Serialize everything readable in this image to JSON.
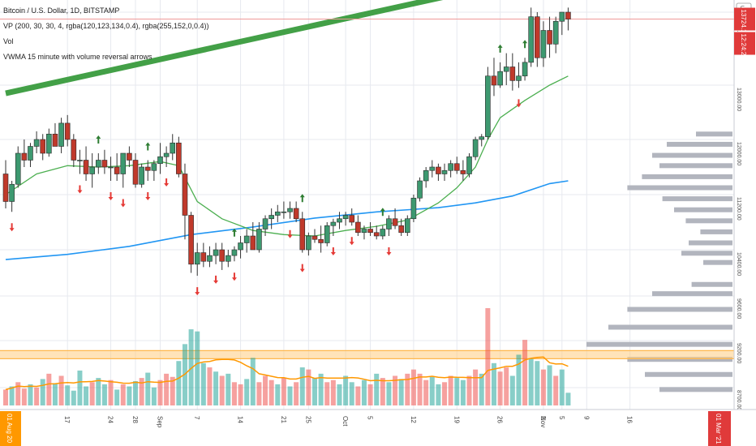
{
  "legend": {
    "symbol": "Bitcoin / U.S. Dollar, 1D, BITSTAMP",
    "vp": "VP (200, 30, 30, 4, rgba(120,123,134,0.4), rgba(255,152,0,0.4))",
    "vol": "Vol",
    "vwma": "VWMA 15 minute with volume reversal arrows"
  },
  "price_axis": {
    "ticks": [
      {
        "label": "13800.00",
        "price": 13800
      },
      {
        "label": "13000.00",
        "price": 13000
      },
      {
        "label": "12000.00",
        "price": 12000
      },
      {
        "label": "11200.00",
        "price": 11200
      },
      {
        "label": "10400.00",
        "price": 10400
      },
      {
        "label": "9600.00",
        "price": 9600
      },
      {
        "label": "9200.00",
        "price": 9200
      },
      {
        "label": "8700.00",
        "price": 8700
      }
    ],
    "last_price": "13724.17",
    "countdown": "12:24:26",
    "top_label": "USD"
  },
  "time_axis": {
    "labels": [
      {
        "text": "17",
        "i": 10
      },
      {
        "text": "24",
        "i": 17
      },
      {
        "text": "28",
        "i": 21
      },
      {
        "text": "Sep",
        "i": 25
      },
      {
        "text": "7",
        "i": 31
      },
      {
        "text": "14",
        "i": 38
      },
      {
        "text": "21",
        "i": 45
      },
      {
        "text": "25",
        "i": 49
      },
      {
        "text": "Oct",
        "i": 55
      },
      {
        "text": "5",
        "i": 59
      },
      {
        "text": "12",
        "i": 66
      },
      {
        "text": "19",
        "i": 73
      },
      {
        "text": "26",
        "i": 80
      },
      {
        "text": "2",
        "i": 87
      },
      {
        "text": "5",
        "i": 90
      },
      {
        "text": "9",
        "i": 94
      },
      {
        "text": "16",
        "i": 101
      }
    ],
    "start_badge": "01 Aug 20",
    "nov_label": "Nov",
    "end_badge": "01 Mar '21"
  },
  "colors": {
    "up": "#26a69a",
    "down": "#ef5350",
    "up_body": "#3d9970",
    "down_body": "#c0392b",
    "vwma_fast": "#4caf50",
    "vwma_slow": "#2196f3",
    "trendline": "#43a047",
    "vol_ma": "#ff9800",
    "vp_bar": "#b2b5be",
    "grid": "#e7e9ef",
    "badge": "#e03a3a",
    "start_badge": "#ff9800"
  },
  "chart_data": {
    "type": "candlestick",
    "timeframe": "1D",
    "ylim": [
      8600,
      14000
    ],
    "candles": [
      [
        11500,
        11700,
        11000,
        11100
      ],
      [
        11100,
        11400,
        10950,
        11350
      ],
      [
        11350,
        11900,
        11300,
        11800
      ],
      [
        11800,
        12000,
        11600,
        11700
      ],
      [
        11700,
        11950,
        11600,
        11900
      ],
      [
        11900,
        12150,
        11800,
        12000
      ],
      [
        12000,
        12100,
        11700,
        11800
      ],
      [
        11800,
        12200,
        11750,
        12100
      ],
      [
        12100,
        12300,
        11900,
        11900
      ],
      [
        11900,
        12400,
        11800,
        12300
      ],
      [
        12300,
        12450,
        11900,
        12000
      ],
      [
        12000,
        12100,
        11600,
        11700
      ],
      [
        11700,
        11850,
        11500,
        11700
      ],
      [
        11700,
        11900,
        11400,
        11500
      ],
      [
        11500,
        11800,
        11300,
        11600
      ],
      [
        11600,
        11800,
        11500,
        11700
      ],
      [
        11700,
        11850,
        11500,
        11600
      ],
      [
        11600,
        11750,
        11400,
        11600
      ],
      [
        11600,
        11800,
        11400,
        11500
      ],
      [
        11500,
        11800,
        11300,
        11800
      ],
      [
        11800,
        11900,
        11600,
        11700
      ],
      [
        11700,
        11800,
        11300,
        11350
      ],
      [
        11350,
        11650,
        11300,
        11600
      ],
      [
        11600,
        11700,
        11400,
        11550
      ],
      [
        11550,
        11700,
        11400,
        11650
      ],
      [
        11650,
        11950,
        11500,
        11750
      ],
      [
        11750,
        11900,
        11600,
        11800
      ],
      [
        11800,
        12100,
        11700,
        11950
      ],
      [
        11950,
        12050,
        11450,
        11500
      ],
      [
        11500,
        11650,
        10550,
        10900
      ],
      [
        10900,
        10950,
        10000,
        10150
      ],
      [
        10150,
        10500,
        9950,
        10350
      ],
      [
        10350,
        10500,
        10100,
        10200
      ],
      [
        10200,
        10450,
        10100,
        10300
      ],
      [
        10300,
        10500,
        10150,
        10400
      ],
      [
        10400,
        10500,
        10050,
        10200
      ],
      [
        10200,
        10400,
        10100,
        10300
      ],
      [
        10300,
        10450,
        10200,
        10400
      ],
      [
        10400,
        10600,
        10250,
        10500
      ],
      [
        10500,
        10700,
        10350,
        10600
      ],
      [
        10600,
        10800,
        10400,
        10400
      ],
      [
        10400,
        10800,
        10350,
        10700
      ],
      [
        10700,
        10900,
        10600,
        10850
      ],
      [
        10850,
        11000,
        10700,
        10900
      ],
      [
        10900,
        11050,
        10800,
        10950
      ],
      [
        10950,
        11100,
        10850,
        10950
      ],
      [
        10950,
        11100,
        10850,
        11000
      ],
      [
        11000,
        11100,
        10800,
        10850
      ],
      [
        10850,
        10950,
        10350,
        10400
      ],
      [
        10400,
        10650,
        10300,
        10600
      ],
      [
        10600,
        10700,
        10500,
        10550
      ],
      [
        10550,
        10750,
        10350,
        10500
      ],
      [
        10500,
        10800,
        10450,
        10750
      ],
      [
        10750,
        10850,
        10600,
        10800
      ],
      [
        10800,
        10950,
        10700,
        10850
      ],
      [
        10850,
        10950,
        10750,
        10900
      ],
      [
        10900,
        11000,
        10750,
        10800
      ],
      [
        10800,
        10900,
        10600,
        10650
      ],
      [
        10650,
        10750,
        10550,
        10700
      ],
      [
        10700,
        10800,
        10600,
        10650
      ],
      [
        10650,
        10750,
        10550,
        10600
      ],
      [
        10600,
        10750,
        10550,
        10700
      ],
      [
        10700,
        10900,
        10600,
        10850
      ],
      [
        10850,
        11000,
        10700,
        10750
      ],
      [
        10750,
        10850,
        10600,
        10650
      ],
      [
        10650,
        10900,
        10600,
        10850
      ],
      [
        10850,
        11200,
        10800,
        11150
      ],
      [
        11150,
        11450,
        11100,
        11400
      ],
      [
        11400,
        11600,
        11300,
        11550
      ],
      [
        11550,
        11700,
        11450,
        11600
      ],
      [
        11600,
        11650,
        11400,
        11500
      ],
      [
        11500,
        11650,
        11400,
        11550
      ],
      [
        11550,
        11700,
        11450,
        11650
      ],
      [
        11650,
        11750,
        11500,
        11550
      ],
      [
        11550,
        11700,
        11400,
        11500
      ],
      [
        11500,
        11800,
        11450,
        11750
      ],
      [
        11750,
        12050,
        11700,
        12000
      ],
      [
        12000,
        12100,
        11900,
        12050
      ],
      [
        12050,
        13200,
        12000,
        13100
      ],
      [
        13100,
        13300,
        12800,
        13000
      ],
      [
        13000,
        13250,
        12950,
        13150
      ],
      [
        13150,
        13350,
        13000,
        13200
      ],
      [
        13200,
        13350,
        12900,
        13050
      ],
      [
        13050,
        13250,
        12950,
        13100
      ],
      [
        13100,
        13300,
        13050,
        13250
      ],
      [
        13250,
        13850,
        13200,
        13750
      ],
      [
        13750,
        13800,
        13200,
        13300
      ],
      [
        13300,
        13700,
        13200,
        13600
      ],
      [
        13600,
        13750,
        13300,
        13450
      ],
      [
        13450,
        13750,
        13350,
        13700
      ],
      [
        13700,
        13800,
        13550,
        13800
      ],
      [
        13800,
        13850,
        13600,
        13724
      ]
    ],
    "volume": [
      [
        15,
        0
      ],
      [
        18,
        1
      ],
      [
        22,
        0
      ],
      [
        16,
        0
      ],
      [
        20,
        1
      ],
      [
        17,
        0
      ],
      [
        25,
        1
      ],
      [
        30,
        0
      ],
      [
        21,
        1
      ],
      [
        28,
        0
      ],
      [
        19,
        1
      ],
      [
        14,
        1
      ],
      [
        33,
        1
      ],
      [
        18,
        1
      ],
      [
        22,
        0
      ],
      [
        26,
        1
      ],
      [
        20,
        1
      ],
      [
        24,
        0
      ],
      [
        15,
        1
      ],
      [
        20,
        0
      ],
      [
        18,
        1
      ],
      [
        23,
        1
      ],
      [
        26,
        0
      ],
      [
        31,
        1
      ],
      [
        17,
        1
      ],
      [
        24,
        0
      ],
      [
        30,
        0
      ],
      [
        27,
        0
      ],
      [
        42,
        1
      ],
      [
        58,
        1
      ],
      [
        72,
        1
      ],
      [
        70,
        1
      ],
      [
        40,
        1
      ],
      [
        36,
        0
      ],
      [
        32,
        1
      ],
      [
        28,
        0
      ],
      [
        30,
        1
      ],
      [
        22,
        0
      ],
      [
        20,
        0
      ],
      [
        25,
        1
      ],
      [
        45,
        1
      ],
      [
        22,
        0
      ],
      [
        28,
        0
      ],
      [
        24,
        0
      ],
      [
        20,
        1
      ],
      [
        26,
        0
      ],
      [
        18,
        1
      ],
      [
        22,
        0
      ],
      [
        36,
        1
      ],
      [
        34,
        0
      ],
      [
        26,
        1
      ],
      [
        30,
        1
      ],
      [
        22,
        0
      ],
      [
        24,
        0
      ],
      [
        20,
        1
      ],
      [
        28,
        1
      ],
      [
        22,
        1
      ],
      [
        18,
        0
      ],
      [
        24,
        1
      ],
      [
        20,
        0
      ],
      [
        30,
        1
      ],
      [
        26,
        0
      ],
      [
        22,
        1
      ],
      [
        28,
        0
      ],
      [
        25,
        1
      ],
      [
        30,
        0
      ],
      [
        34,
        0
      ],
      [
        30,
        0
      ],
      [
        24,
        0
      ],
      [
        27,
        1
      ],
      [
        20,
        1
      ],
      [
        22,
        0
      ],
      [
        28,
        0
      ],
      [
        26,
        1
      ],
      [
        24,
        1
      ],
      [
        28,
        0
      ],
      [
        34,
        0
      ],
      [
        30,
        1
      ],
      [
        92,
        0
      ],
      [
        40,
        1
      ],
      [
        32,
        0
      ],
      [
        36,
        0
      ],
      [
        28,
        1
      ],
      [
        48,
        1
      ],
      [
        62,
        0
      ],
      [
        44,
        1
      ],
      [
        42,
        1
      ],
      [
        34,
        0
      ],
      [
        38,
        1
      ],
      [
        28,
        0
      ],
      [
        34,
        1
      ],
      [
        12,
        1
      ]
    ],
    "vwma_fast": [
      [
        0,
        11200
      ],
      [
        5,
        11500
      ],
      [
        10,
        11620
      ],
      [
        15,
        11600
      ],
      [
        20,
        11620
      ],
      [
        25,
        11680
      ],
      [
        28,
        11620
      ],
      [
        31,
        11100
      ],
      [
        35,
        10850
      ],
      [
        40,
        10680
      ],
      [
        45,
        10620
      ],
      [
        50,
        10600
      ],
      [
        55,
        10680
      ],
      [
        60,
        10740
      ],
      [
        65,
        10830
      ],
      [
        70,
        11080
      ],
      [
        73,
        11300
      ],
      [
        76,
        11600
      ],
      [
        78,
        12000
      ],
      [
        80,
        12400
      ],
      [
        84,
        12720
      ],
      [
        88,
        13000
      ],
      [
        91,
        13100
      ]
    ],
    "vwma_slow": [
      [
        0,
        10230
      ],
      [
        10,
        10320
      ],
      [
        20,
        10450
      ],
      [
        30,
        10620
      ],
      [
        40,
        10730
      ],
      [
        50,
        10860
      ],
      [
        60,
        10950
      ],
      [
        70,
        11010
      ],
      [
        76,
        11080
      ],
      [
        82,
        11180
      ],
      [
        88,
        11360
      ],
      [
        91,
        11400
      ]
    ],
    "trendline": {
      "from": [
        0,
        12850
      ],
      "to": [
        110,
        14550
      ]
    },
    "up_arrows": [
      15,
      23,
      37,
      48,
      61,
      80,
      84
    ],
    "down_arrows": [
      1,
      12,
      17,
      19,
      23,
      26,
      31,
      34,
      37,
      46,
      48,
      53,
      56,
      62,
      83
    ],
    "volume_profile": [
      {
        "price": 12100,
        "size": 0.25
      },
      {
        "price": 11930,
        "size": 0.45
      },
      {
        "price": 11770,
        "size": 0.55
      },
      {
        "price": 11620,
        "size": 0.5
      },
      {
        "price": 11460,
        "size": 0.62
      },
      {
        "price": 11300,
        "size": 0.72
      },
      {
        "price": 11140,
        "size": 0.48
      },
      {
        "price": 10980,
        "size": 0.4
      },
      {
        "price": 10820,
        "size": 0.32
      },
      {
        "price": 10660,
        "size": 0.22
      },
      {
        "price": 10500,
        "size": 0.3
      },
      {
        "price": 10340,
        "size": 0.35
      },
      {
        "price": 10180,
        "size": 0.2
      },
      {
        "price": 9800,
        "size": 0.28
      },
      {
        "price": 9640,
        "size": 0.55
      },
      {
        "price": 9480,
        "size": 0.72
      },
      {
        "price": 9320,
        "size": 0.85
      },
      {
        "price": 9160,
        "size": 1.0
      },
      {
        "price": 9000,
        "size": 0.72
      },
      {
        "price": 8840,
        "size": 0.6
      },
      {
        "price": 8680,
        "size": 0.5
      }
    ],
    "value_area_price": 9050
  }
}
